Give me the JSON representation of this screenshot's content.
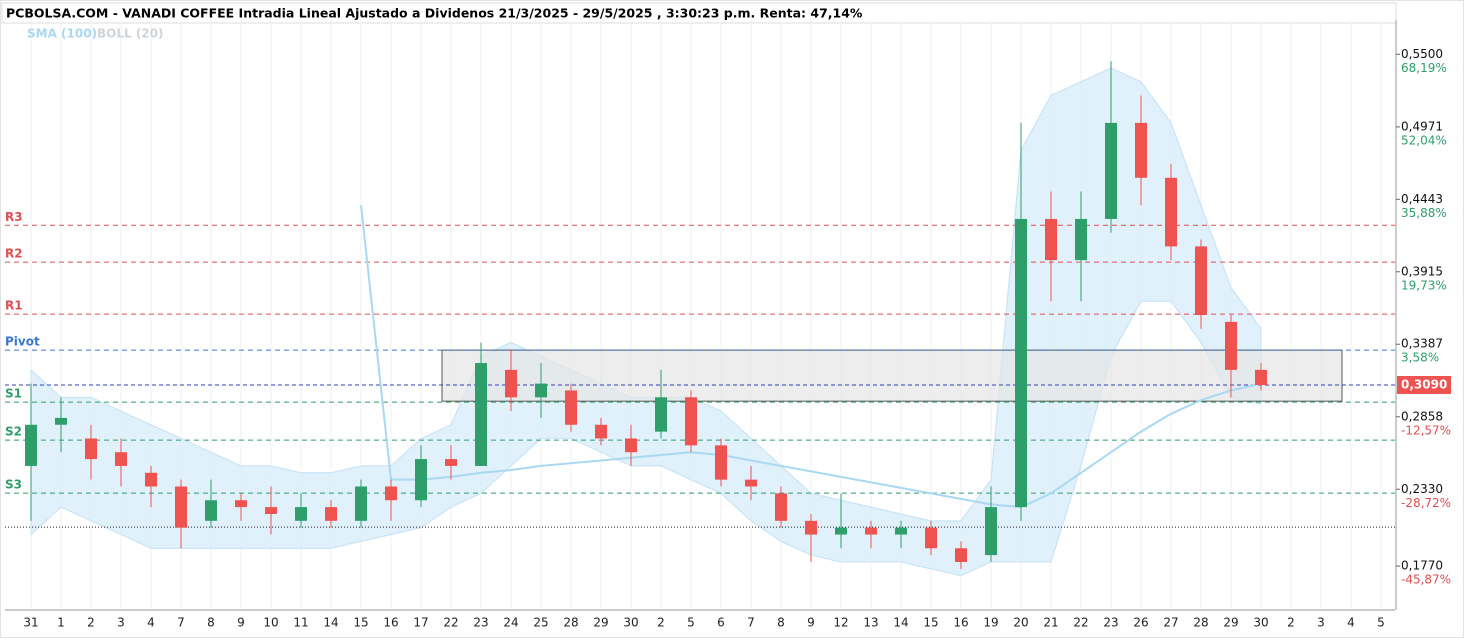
{
  "chart_data": {
    "type": "candlestick",
    "title": "PCBOLSA.COM - VANADI COFFEE Intradia Lineal Ajustado a Dividenos 21/3/2025 - 29/5/2025 , 3:30:23 p.m. Renta: 47,14%",
    "categories": [
      "31",
      "1",
      "2",
      "3",
      "4",
      "7",
      "8",
      "9",
      "10",
      "11",
      "14",
      "15",
      "16",
      "17",
      "22",
      "23",
      "24",
      "25",
      "28",
      "29",
      "30",
      "2",
      "5",
      "6",
      "7",
      "8",
      "9",
      "12",
      "13",
      "14",
      "15",
      "16",
      "19",
      "20",
      "21",
      "22",
      "23",
      "26",
      "27",
      "28",
      "29",
      "30",
      "2",
      "3",
      "4",
      "5"
    ],
    "open": [
      0.25,
      0.28,
      0.27,
      0.26,
      0.245,
      0.235,
      0.21,
      0.225,
      0.22,
      0.21,
      0.22,
      0.21,
      0.235,
      0.225,
      0.255,
      0.25,
      0.32,
      0.3,
      0.305,
      0.28,
      0.27,
      0.275,
      0.3,
      0.265,
      0.24,
      0.23,
      0.21,
      0.2,
      0.205,
      0.2,
      0.205,
      0.19,
      0.185,
      0.22,
      0.43,
      0.4,
      0.43,
      0.5,
      0.46,
      0.41,
      0.355,
      0.32,
      null,
      null,
      null,
      null
    ],
    "high": [
      0.31,
      0.3,
      0.28,
      0.27,
      0.25,
      0.24,
      0.24,
      0.23,
      0.235,
      0.23,
      0.225,
      0.24,
      0.24,
      0.265,
      0.265,
      0.34,
      0.335,
      0.325,
      0.31,
      0.285,
      0.28,
      0.32,
      0.305,
      0.27,
      0.25,
      0.235,
      0.215,
      0.23,
      0.21,
      0.21,
      0.21,
      0.195,
      0.235,
      0.5,
      0.45,
      0.45,
      0.545,
      0.52,
      0.47,
      0.415,
      0.36,
      0.325,
      null,
      null,
      null,
      null
    ],
    "low": [
      0.21,
      0.26,
      0.24,
      0.235,
      0.22,
      0.19,
      0.205,
      0.21,
      0.2,
      0.205,
      0.205,
      0.205,
      0.21,
      0.22,
      0.24,
      0.25,
      0.29,
      0.285,
      0.275,
      0.265,
      0.25,
      0.27,
      0.26,
      0.235,
      0.225,
      0.205,
      0.18,
      0.19,
      0.19,
      0.19,
      0.185,
      0.175,
      0.18,
      0.21,
      0.37,
      0.37,
      0.42,
      0.44,
      0.4,
      0.35,
      0.3,
      0.305,
      null,
      null,
      null,
      null
    ],
    "close": [
      0.28,
      0.285,
      0.255,
      0.25,
      0.235,
      0.205,
      0.225,
      0.22,
      0.215,
      0.22,
      0.21,
      0.235,
      0.225,
      0.255,
      0.25,
      0.325,
      0.3,
      0.31,
      0.28,
      0.27,
      0.26,
      0.3,
      0.265,
      0.24,
      0.235,
      0.21,
      0.2,
      0.205,
      0.2,
      0.205,
      0.19,
      0.18,
      0.22,
      0.43,
      0.4,
      0.43,
      0.5,
      0.46,
      0.41,
      0.36,
      0.32,
      0.309,
      null,
      null,
      null,
      null
    ],
    "up_color": "#2e9e6b",
    "down_color": "#ef5350",
    "indicators": [
      {
        "name": "SMA (100)",
        "color": "#a9d8f2",
        "values": [
          null,
          null,
          null,
          null,
          null,
          null,
          null,
          null,
          null,
          null,
          null,
          0.44,
          0.24,
          0.24,
          0.242,
          0.245,
          0.247,
          0.25,
          0.252,
          0.254,
          0.256,
          0.258,
          0.26,
          0.258,
          0.254,
          0.25,
          0.246,
          0.242,
          0.238,
          0.234,
          0.23,
          0.226,
          0.222,
          0.22,
          0.23,
          0.245,
          0.26,
          0.275,
          0.288,
          0.298,
          0.305,
          0.31,
          null,
          null,
          null,
          null
        ]
      },
      {
        "name": "BOLL (20)",
        "color": "#cfd4d8",
        "upper": [
          0.32,
          0.3,
          0.3,
          0.29,
          0.28,
          0.27,
          0.26,
          0.25,
          0.25,
          0.245,
          0.245,
          0.25,
          0.25,
          0.27,
          0.28,
          0.33,
          0.34,
          0.33,
          0.32,
          0.31,
          0.3,
          0.3,
          0.3,
          0.29,
          0.27,
          0.25,
          0.23,
          0.225,
          0.22,
          0.215,
          0.21,
          0.21,
          0.24,
          0.48,
          0.52,
          0.53,
          0.54,
          0.53,
          0.5,
          0.44,
          0.38,
          0.35,
          null,
          null,
          null,
          null
        ],
        "lower": [
          0.2,
          0.22,
          0.21,
          0.2,
          0.19,
          0.19,
          0.19,
          0.19,
          0.19,
          0.19,
          0.19,
          0.195,
          0.2,
          0.205,
          0.22,
          0.23,
          0.25,
          0.27,
          0.27,
          0.26,
          0.25,
          0.25,
          0.24,
          0.23,
          0.21,
          0.195,
          0.185,
          0.18,
          0.18,
          0.18,
          0.175,
          0.17,
          0.18,
          0.18,
          0.18,
          0.25,
          0.33,
          0.37,
          0.37,
          0.34,
          0.3,
          0.295,
          null,
          null,
          null,
          null
        ]
      }
    ],
    "levels": [
      {
        "name": "R3",
        "value": 0.4254,
        "color": "#e05050"
      },
      {
        "name": "R2",
        "value": 0.3985,
        "color": "#e05050"
      },
      {
        "name": "R1",
        "value": 0.3606,
        "color": "#e05050"
      },
      {
        "name": "Pivot",
        "value": 0.3344,
        "color": "#3a78d0"
      },
      {
        "name": "S1",
        "value": 0.2965,
        "color": "#2e9e6b"
      },
      {
        "name": "S2",
        "value": 0.2688,
        "color": "#2e9e6b"
      },
      {
        "name": "S3",
        "value": 0.2302,
        "color": "#2e9e6b"
      }
    ],
    "reference_line": 0.2054,
    "zone": [
      0.3344,
      0.2972
    ],
    "last_price": {
      "value": 0.309,
      "label": "0,3090",
      "color": "#ef5350"
    },
    "ylim": [
      0.145,
      0.575
    ],
    "yticks": [
      {
        "value": 0.55,
        "label": "0,5500"
      },
      {
        "value": 0.4971,
        "label": "0,4971"
      },
      {
        "value": 0.4443,
        "label": "0,4443"
      },
      {
        "value": 0.3915,
        "label": "0,3915"
      },
      {
        "value": 0.3387,
        "label": "0,3387"
      },
      {
        "value": 0.2858,
        "label": "0,2858"
      },
      {
        "value": 0.233,
        "label": "0,2330"
      },
      {
        "value": 0.177,
        "label": "0,1770"
      }
    ],
    "ytick_changes": [
      "68,19%",
      "52,04%",
      "35,88%",
      "19,73%",
      "3,58%",
      "-12,57%",
      "-28,72%",
      "-45,87%"
    ]
  }
}
